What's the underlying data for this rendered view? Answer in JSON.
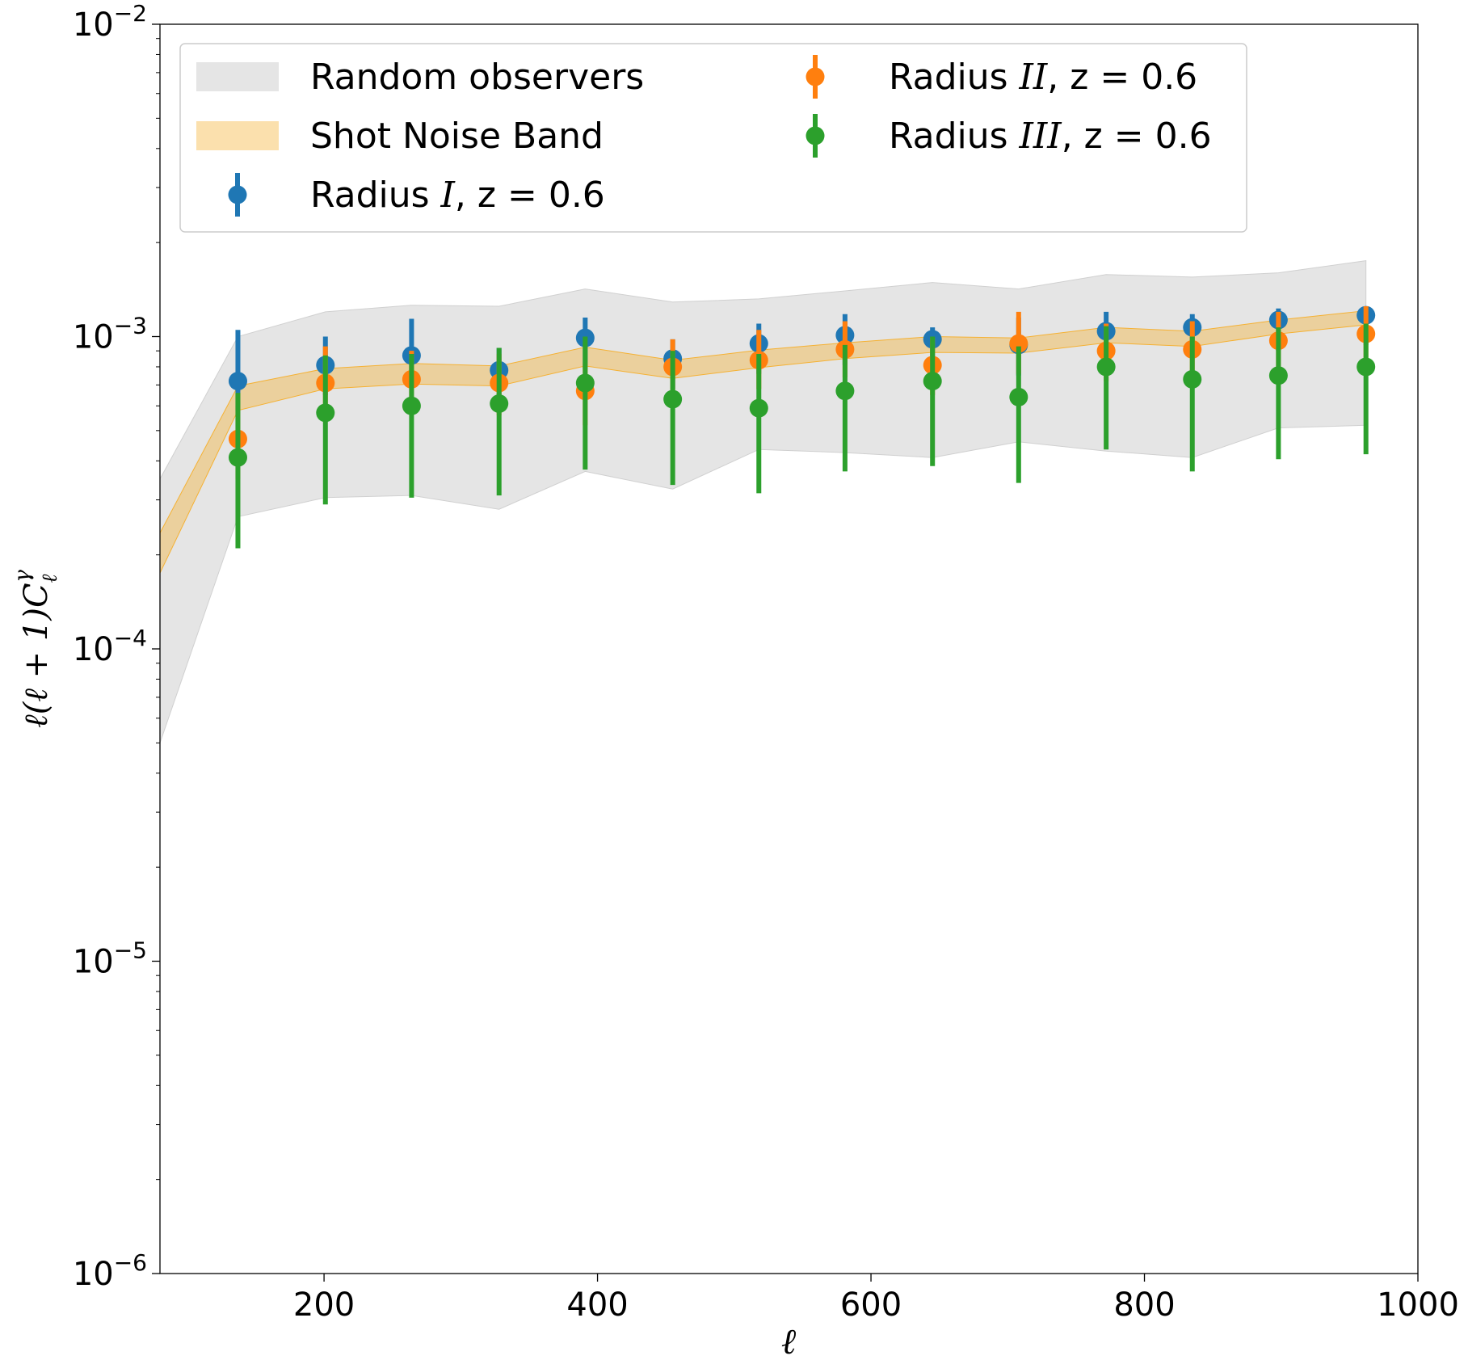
{
  "chart_data": {
    "type": "errorbar-scatter-logy",
    "xlabel": "ℓ",
    "ylabel_parts": [
      "ℓ(ℓ + 1)C",
      "ℓ",
      "γ"
    ],
    "xlim": [
      80,
      1000
    ],
    "ylim": [
      1e-06,
      0.01
    ],
    "yscale": "log",
    "x_ticks": [
      200,
      400,
      600,
      800,
      1000
    ],
    "x_tick_labels": [
      "200",
      "400",
      "600",
      "800",
      "1000"
    ],
    "y_ticks": [
      {
        "value": 1e-06,
        "base": "10",
        "exp": "−6"
      },
      {
        "value": 1e-05,
        "base": "10",
        "exp": "−5"
      },
      {
        "value": 0.0001,
        "base": "10",
        "exp": "−4"
      },
      {
        "value": 0.001,
        "base": "10",
        "exp": "−3"
      },
      {
        "value": 0.01,
        "base": "10",
        "exp": "−2"
      }
    ],
    "colors": {
      "random_band": "#d0d0d0",
      "shot_band": "#f5b133",
      "radius_I": "#1f77b4",
      "radius_II": "#ff7f0e",
      "radius_III": "#2ca02c"
    },
    "bands": [
      {
        "name": "Random observers",
        "color": "#d0d0d0",
        "x": [
          80,
          137,
          201,
          264,
          328,
          391,
          455,
          518,
          581,
          645,
          708,
          772,
          835,
          898,
          962
        ],
        "lower": [
          5e-05,
          0.000265,
          0.000305,
          0.00031,
          0.00028,
          0.00037,
          0.000325,
          0.000435,
          0.000425,
          0.00041,
          0.00046,
          0.00043,
          0.00041,
          0.00051,
          0.00052
        ],
        "upper": [
          0.00035,
          0.001,
          0.0012,
          0.00126,
          0.00125,
          0.00142,
          0.00129,
          0.00132,
          0.0014,
          0.00149,
          0.00142,
          0.00158,
          0.00155,
          0.0016,
          0.00175
        ]
      },
      {
        "name": "Shot Noise Band",
        "color": "#f5b133",
        "x": [
          80,
          137,
          201,
          264,
          328,
          391,
          455,
          518,
          581,
          645,
          708,
          772,
          835,
          898,
          962
        ],
        "lower": [
          0.000175,
          0.00058,
          0.00068,
          0.000705,
          0.000695,
          0.000805,
          0.000735,
          0.000795,
          0.00085,
          0.00089,
          0.000885,
          0.000955,
          0.00093,
          0.00102,
          0.00109
        ],
        "upper": [
          0.000235,
          0.000695,
          0.00079,
          0.00082,
          0.000805,
          0.000925,
          0.00084,
          0.000905,
          0.000955,
          0.001,
          0.00099,
          0.00107,
          0.00104,
          0.00113,
          0.00121
        ]
      }
    ],
    "series": [
      {
        "name": "Radius I",
        "color": "#1f77b4",
        "x": [
          137,
          201,
          264,
          328,
          391,
          455,
          518,
          581,
          645,
          708,
          772,
          835,
          898,
          962
        ],
        "y": [
          0.00072,
          0.00081,
          0.00087,
          0.00078,
          0.00099,
          0.00085,
          0.00095,
          0.00101,
          0.00098,
          0.00094,
          0.00104,
          0.00107,
          0.00113,
          0.00117
        ],
        "err_low": [
          0.00058,
          0.00065,
          0.00069,
          0.00062,
          0.00079,
          0.00068,
          0.00076,
          0.00081,
          0.00078,
          0.00075,
          0.00083,
          0.00086,
          0.0009,
          0.00094
        ],
        "err_high": [
          0.00105,
          0.001,
          0.00114,
          0.00092,
          0.00115,
          0.00098,
          0.0011,
          0.00118,
          0.00107,
          0.00115,
          0.0012,
          0.00118,
          0.00123,
          0.00125
        ]
      },
      {
        "name": "Radius II",
        "color": "#ff7f0e",
        "x": [
          137,
          201,
          264,
          328,
          391,
          455,
          518,
          581,
          645,
          708,
          772,
          835,
          898,
          962
        ],
        "y": [
          0.00047,
          0.00071,
          0.00073,
          0.00071,
          0.00067,
          0.0008,
          0.00084,
          0.00091,
          0.00081,
          0.00095,
          0.0009,
          0.00091,
          0.00097,
          0.00102
        ],
        "err_low": [
          0.00035,
          0.00056,
          0.00058,
          0.00056,
          0.00052,
          0.00064,
          0.00068,
          0.00074,
          0.00065,
          0.00076,
          0.00072,
          0.00073,
          0.00078,
          0.00082
        ],
        "err_high": [
          0.0006,
          0.00093,
          0.0009,
          0.00088,
          0.00082,
          0.00098,
          0.00105,
          0.00112,
          0.00099,
          0.0012,
          0.0011,
          0.00112,
          0.0012,
          0.00125
        ]
      },
      {
        "name": "Radius III",
        "color": "#2ca02c",
        "x": [
          137,
          201,
          264,
          328,
          391,
          455,
          518,
          581,
          645,
          708,
          772,
          835,
          898,
          962
        ],
        "y": [
          0.00041,
          0.00057,
          0.0006,
          0.00061,
          0.00071,
          0.00063,
          0.00059,
          0.00067,
          0.00072,
          0.00064,
          0.0008,
          0.00073,
          0.00075,
          0.0008
        ],
        "err_low": [
          0.00021,
          0.00029,
          0.000305,
          0.00031,
          0.000375,
          0.000335,
          0.000315,
          0.00037,
          0.000385,
          0.00034,
          0.000435,
          0.00037,
          0.000405,
          0.00042
        ],
        "err_high": [
          0.00066,
          0.00087,
          0.00088,
          0.00092,
          0.001,
          0.0009,
          0.00088,
          0.00094,
          0.001,
          0.00093,
          0.00108,
          0.001,
          0.00107,
          0.0011
        ]
      }
    ],
    "legend": {
      "placement": "upper-left",
      "entries": [
        {
          "kind": "band",
          "color": "#d0d0d0",
          "label": "Random observers"
        },
        {
          "kind": "band",
          "color": "#f5b133",
          "label": "Shot Noise Band"
        },
        {
          "kind": "point",
          "color": "#1f77b4",
          "prefix": "Radius ",
          "roman": "I",
          "suffix": ", z = 0.6"
        },
        {
          "kind": "point",
          "color": "#ff7f0e",
          "prefix": "Radius ",
          "roman": "II",
          "suffix": ", z = 0.6"
        },
        {
          "kind": "point",
          "color": "#2ca02c",
          "prefix": "Radius ",
          "roman": "III",
          "suffix": ", z = 0.6"
        }
      ]
    }
  }
}
